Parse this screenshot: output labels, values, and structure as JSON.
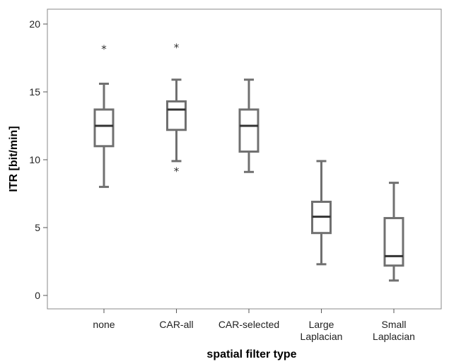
{
  "chart_data": {
    "type": "boxplot",
    "xlabel": "spatial filter type",
    "ylabel": "ITR [bit/min]",
    "ylim": [
      -1,
      21
    ],
    "yticks": [
      0,
      5,
      10,
      15,
      20
    ],
    "grid": false,
    "legend": "none",
    "colors": {
      "box_stroke": "#707070",
      "median": "#333333",
      "axis": "#555555",
      "outlier": "#333333"
    },
    "categories": [
      {
        "label": [
          "none"
        ],
        "min": 8.0,
        "q1": 11.0,
        "median": 12.5,
        "q3": 13.7,
        "max": 15.6,
        "outliers": [
          18.2
        ]
      },
      {
        "label": [
          "CAR-all"
        ],
        "min": 9.9,
        "q1": 12.2,
        "median": 13.7,
        "q3": 14.3,
        "max": 15.9,
        "outliers": [
          18.3,
          9.2
        ]
      },
      {
        "label": [
          "CAR-selected"
        ],
        "min": 9.1,
        "q1": 10.6,
        "median": 12.5,
        "q3": 13.7,
        "max": 15.9,
        "outliers": []
      },
      {
        "label": [
          "Large",
          "Laplacian"
        ],
        "min": 2.3,
        "q1": 4.6,
        "median": 5.8,
        "q3": 6.9,
        "max": 9.9,
        "outliers": []
      },
      {
        "label": [
          "Small",
          "Laplacian"
        ],
        "min": 1.1,
        "q1": 2.2,
        "median": 2.9,
        "q3": 5.7,
        "max": 8.3,
        "outliers": []
      }
    ]
  }
}
